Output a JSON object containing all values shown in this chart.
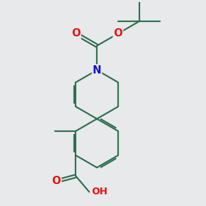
{
  "background_color": "#e8e9ea",
  "bond_color": "#2d6e50",
  "bond_width": 1.6,
  "atom_colors": {
    "O": "#ee1111",
    "N": "#1111cc",
    "C": "#000000"
  },
  "figsize": [
    3.0,
    3.0
  ],
  "dpi": 100
}
